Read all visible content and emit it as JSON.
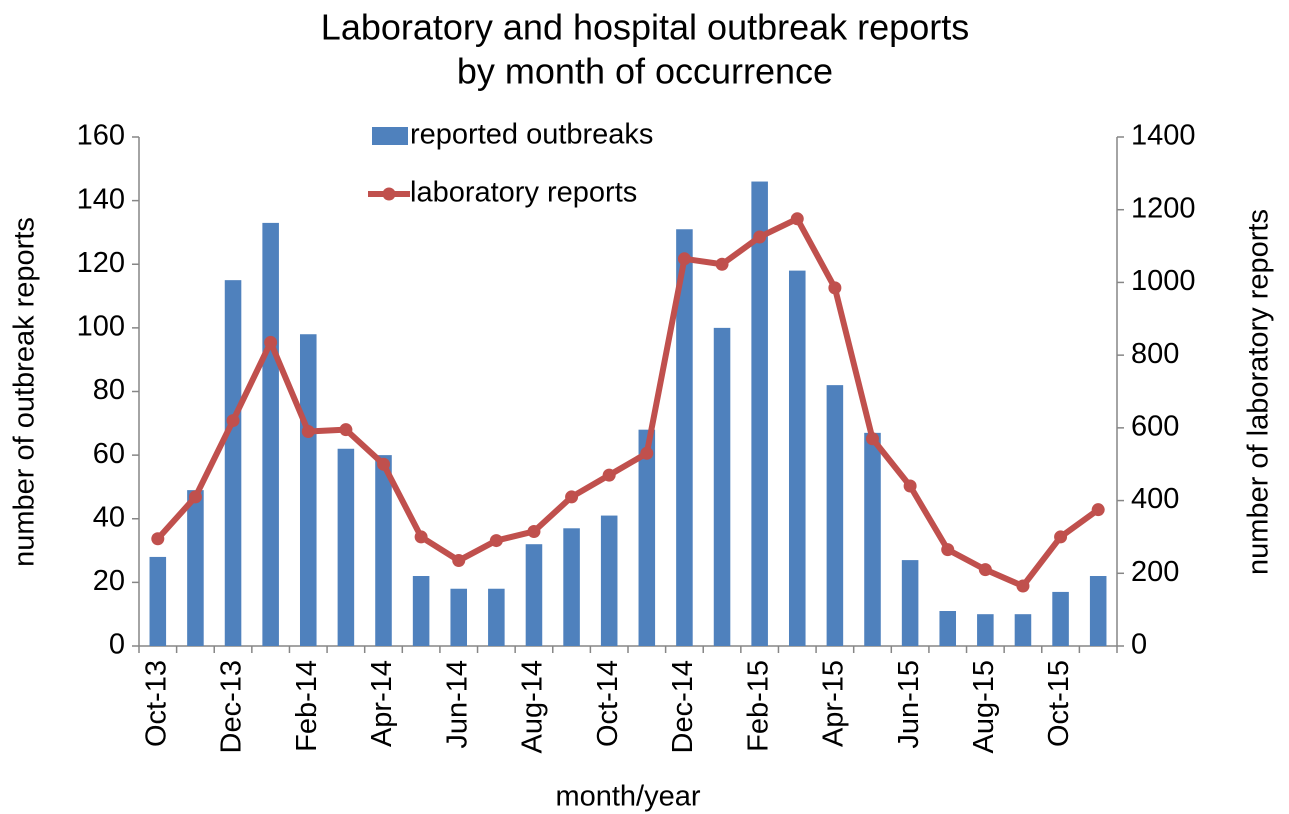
{
  "chart_data": {
    "type": "bar-line",
    "title": [
      "Laboratory and hospital outbreak reports",
      "by month of occurrence"
    ],
    "x_label": "month/year",
    "y_label": "number of outbreak reports",
    "y2_label": "number of laboratory reports",
    "categories": [
      "Oct-13",
      null,
      "Dec-13",
      null,
      "Feb-14",
      null,
      "Apr-14",
      null,
      "Jun-14",
      null,
      "Aug-14",
      null,
      "Oct-14",
      null,
      "Dec-14",
      null,
      "Feb-15",
      null,
      "Apr-15",
      null,
      "Jun-15",
      null,
      "Aug-15",
      null,
      "Oct-15",
      null
    ],
    "series": [
      {
        "name": "reported outbreaks",
        "type": "bar",
        "color": "#4f81bd",
        "values": [
          28,
          49,
          115,
          133,
          98,
          62,
          60,
          22,
          18,
          18,
          32,
          37,
          41,
          68,
          131,
          100,
          146,
          118,
          82,
          67,
          27,
          11,
          10,
          10,
          17,
          22
        ]
      },
      {
        "name": "laboratory reports",
        "type": "line",
        "axis": "y2",
        "color": "#c0504d",
        "values": [
          295,
          410,
          620,
          835,
          590,
          595,
          500,
          300,
          235,
          290,
          315,
          410,
          470,
          530,
          1065,
          1050,
          1125,
          1175,
          985,
          570,
          440,
          265,
          210,
          165,
          300,
          375
        ]
      }
    ],
    "ylim": [
      0,
      160
    ],
    "yticks": [
      0,
      20,
      40,
      60,
      80,
      100,
      120,
      140,
      160
    ],
    "y2lim": [
      0,
      1400
    ],
    "y2ticks": [
      0,
      200,
      400,
      600,
      800,
      1000,
      1200,
      1400
    ],
    "grid": false
  }
}
